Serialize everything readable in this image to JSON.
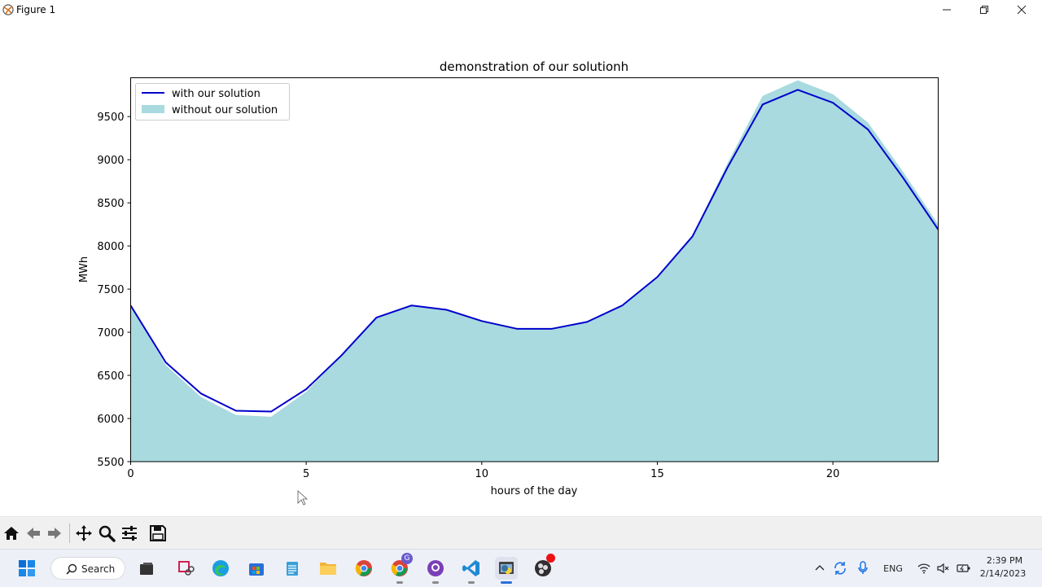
{
  "window": {
    "title": "Figure 1"
  },
  "chart_data": {
    "type": "area",
    "title": "demonstration of our solutionh",
    "xlabel": "hours of the day",
    "ylabel": "MWh",
    "xlim": [
      0,
      23
    ],
    "ylim": [
      5500,
      9950
    ],
    "xticks": [
      0,
      5,
      10,
      15,
      20
    ],
    "yticks": [
      5500,
      6000,
      6500,
      7000,
      7500,
      8000,
      8500,
      9000,
      9500
    ],
    "x": [
      0,
      1,
      2,
      3,
      4,
      5,
      6,
      7,
      8,
      9,
      10,
      11,
      12,
      13,
      14,
      15,
      16,
      17,
      18,
      19,
      20,
      21,
      22,
      23
    ],
    "series": [
      {
        "name": "with our solution",
        "kind": "line",
        "color": "#0000cc",
        "values": [
          7310,
          6650,
          6290,
          6090,
          6080,
          6340,
          6730,
          7170,
          7310,
          7260,
          7130,
          7040,
          7040,
          7120,
          7310,
          7640,
          8110,
          8910,
          9640,
          9810,
          9660,
          9350,
          8790,
          8190
        ]
      },
      {
        "name": "without our solution",
        "kind": "area",
        "color": "#a8dadf",
        "values": [
          7310,
          6620,
          6250,
          6040,
          6020,
          6310,
          6730,
          7170,
          7310,
          7260,
          7130,
          7040,
          7040,
          7120,
          7310,
          7640,
          8120,
          8960,
          9740,
          9920,
          9760,
          9430,
          8860,
          8250
        ]
      }
    ],
    "legend": "upper-left",
    "grid": false
  },
  "toolbar": {
    "home": "home-icon",
    "back": "back-arrow-icon",
    "forward": "forward-arrow-icon",
    "pan": "pan-icon",
    "zoom": "zoom-icon",
    "configure": "configure-subplots-icon",
    "save": "save-icon"
  },
  "taskbar": {
    "search_label": "Search",
    "language": "ENG",
    "time": "2:39 PM",
    "date": "2/14/2023",
    "chrome_badge": "G"
  }
}
